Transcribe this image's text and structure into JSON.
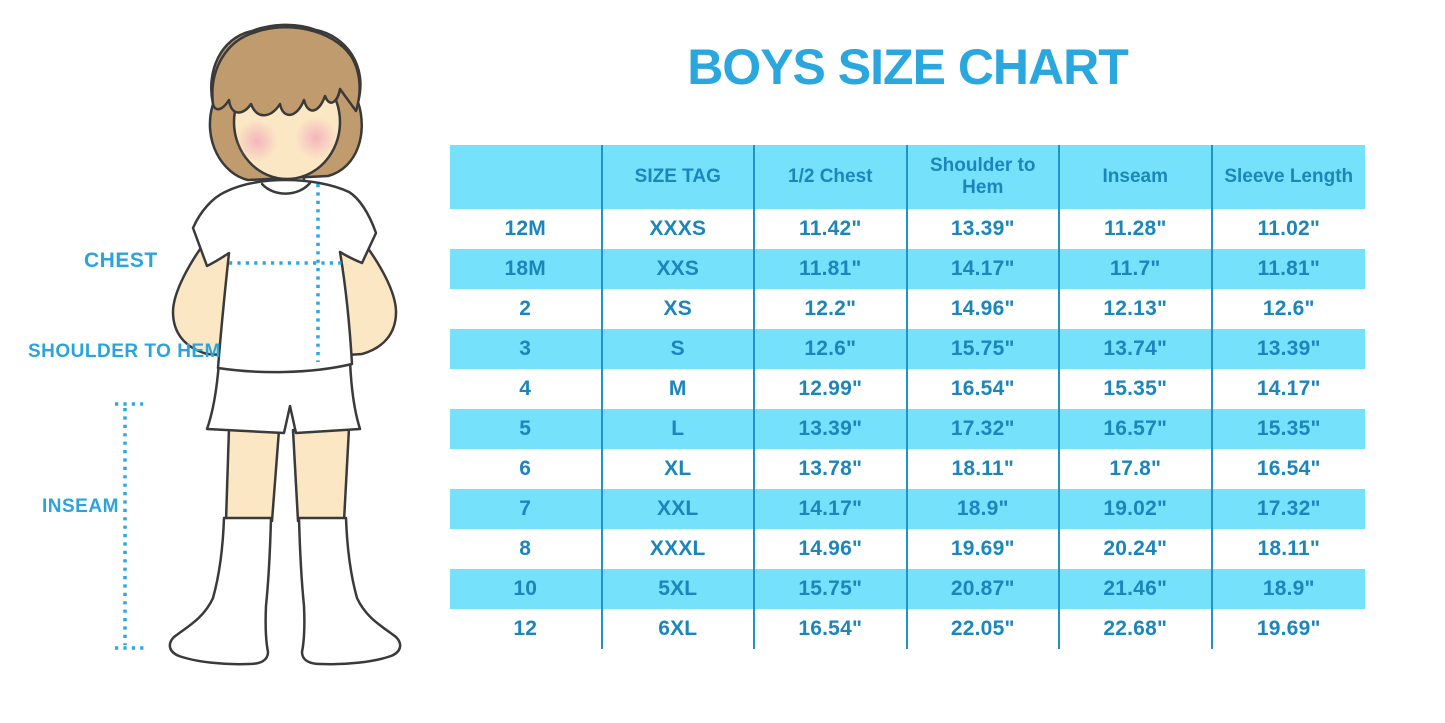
{
  "page": {
    "title": "BOYS SIZE CHART"
  },
  "figure_labels": {
    "chest": "CHEST",
    "shoulder_to_hem": "SHOULDER TO HEM",
    "inseam": "INSEAM"
  },
  "chart_data": {
    "type": "table",
    "title": "BOYS SIZE CHART",
    "columns": [
      "",
      "SIZE TAG",
      "1/2 Chest",
      "Shoulder to Hem",
      "Inseam",
      "Sleeve Length"
    ],
    "rows": [
      [
        "12M",
        "XXXS",
        "11.42\"",
        "13.39\"",
        "11.28\"",
        "11.02\""
      ],
      [
        "18M",
        "XXS",
        "11.81\"",
        "14.17\"",
        "11.7\"",
        "11.81\""
      ],
      [
        "2",
        "XS",
        "12.2\"",
        "14.96\"",
        "12.13\"",
        "12.6\""
      ],
      [
        "3",
        "S",
        "12.6\"",
        "15.75\"",
        "13.74\"",
        "13.39\""
      ],
      [
        "4",
        "M",
        "12.99\"",
        "16.54\"",
        "15.35\"",
        "14.17\""
      ],
      [
        "5",
        "L",
        "13.39\"",
        "17.32\"",
        "16.57\"",
        "15.35\""
      ],
      [
        "6",
        "XL",
        "13.78\"",
        "18.11\"",
        "17.8\"",
        "16.54\""
      ],
      [
        "7",
        "XXL",
        "14.17\"",
        "18.9\"",
        "19.02\"",
        "17.32\""
      ],
      [
        "8",
        "XXXL",
        "14.96\"",
        "19.69\"",
        "20.24\"",
        "18.11\""
      ],
      [
        "10",
        "5XL",
        "15.75\"",
        "20.87\"",
        "21.46\"",
        "18.9\""
      ],
      [
        "12",
        "6XL",
        "16.54\"",
        "22.05\"",
        "22.68\"",
        "19.69\""
      ]
    ],
    "layout": {
      "striped_rows": "alternating white / cyan",
      "header_background": "cyan",
      "grid": "vertical dividers only"
    }
  },
  "colors": {
    "title_blue": "#2BA7E0",
    "label_blue": "#29A4DD",
    "table_text_blue": "#1B86BC",
    "row_cyan": "#76E1FB",
    "divider_blue": "#2293C5",
    "dotted_line_blue": "#29A8E2",
    "hair_brown": "#BF9B6E",
    "skin": "#FBE7C4",
    "blush_pink": "#F2A9BC",
    "outline": "#3A3A3A"
  }
}
